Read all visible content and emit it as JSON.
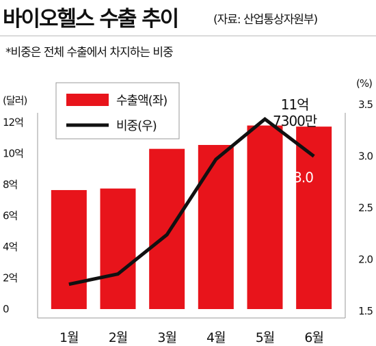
{
  "title": "바이오헬스 수출 추이",
  "source": "(자료: 산업통상자원부)",
  "note": "*비중은 전체 수출에서 차지하는 비중",
  "colors": {
    "bar": "#e8141b",
    "line": "#111111",
    "legend_bg": "#ffffff"
  },
  "chart_data": {
    "type": "bar",
    "categories": [
      "1월",
      "2월",
      "3월",
      "4월",
      "5월",
      "6월"
    ],
    "series": [
      {
        "name": "수출액(좌)",
        "type": "bar",
        "axis": "left",
        "values": [
          7.65,
          7.75,
          10.3,
          10.55,
          11.8,
          11.73
        ]
      },
      {
        "name": "비중(우)",
        "type": "line",
        "axis": "right",
        "values": [
          1.76,
          1.86,
          2.24,
          2.97,
          3.36,
          3.0
        ]
      }
    ],
    "y_left": {
      "unit": "(달러)",
      "ylim": [
        0,
        12
      ],
      "ticks": [
        0,
        2,
        4,
        6,
        8,
        10,
        12
      ],
      "tick_labels": [
        "0",
        "2억",
        "4억",
        "6억",
        "8억",
        "10억",
        "12억"
      ]
    },
    "y_right": {
      "unit": "(%)",
      "ylim": [
        1.5,
        3.5
      ],
      "ticks": [
        1.5,
        2.0,
        2.5,
        3.0,
        3.5
      ],
      "tick_labels": [
        "1.5",
        "2.0",
        "2.5",
        "3.0",
        "3.5"
      ]
    },
    "annotations": [
      {
        "index": 5,
        "series": "수출액(좌)",
        "lines": [
          "11억",
          "7300만"
        ]
      },
      {
        "index": 5,
        "series": "비중(우)",
        "text": "3.0"
      }
    ],
    "legend": "top-left",
    "grid": false
  }
}
